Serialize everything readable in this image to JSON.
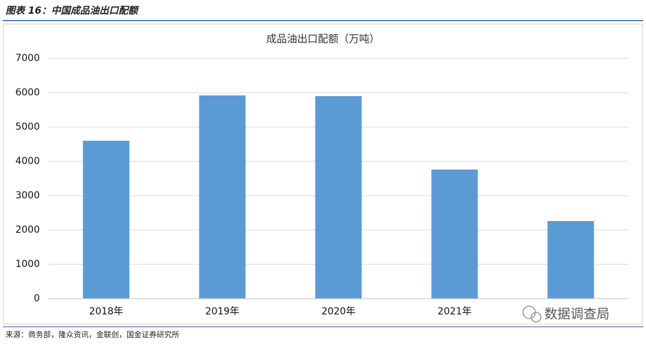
{
  "header": "图表 16：中国成品油出口配额",
  "chart_data": {
    "type": "bar",
    "title": "成品油出口配额（万吨）",
    "categories": [
      "2018年",
      "2019年",
      "2020年",
      "2021年",
      null
    ],
    "values": [
      4600,
      5920,
      5900,
      3760,
      2260
    ],
    "color": "#5b9bd5",
    "ylim": [
      0,
      7000
    ],
    "yticks": [
      0,
      1000,
      2000,
      3000,
      4000,
      5000,
      6000,
      7000
    ],
    "grid": true
  },
  "watermark": "数据调查局",
  "source": "来源：商务部，隆众资讯，金联创，国金证券研究所"
}
